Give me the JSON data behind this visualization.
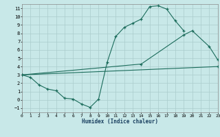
{
  "background_color": "#c8e8e8",
  "grid_color": "#aacccc",
  "line_color": "#1a6b5a",
  "xlim": [
    0,
    23
  ],
  "ylim": [
    -1.5,
    11.5
  ],
  "xticks": [
    0,
    1,
    2,
    3,
    4,
    5,
    6,
    7,
    8,
    9,
    10,
    11,
    12,
    13,
    14,
    15,
    16,
    17,
    18,
    19,
    20,
    21,
    22,
    23
  ],
  "yticks": [
    -1,
    0,
    1,
    2,
    3,
    4,
    5,
    6,
    7,
    8,
    9,
    10,
    11
  ],
  "xlabel": "Humidex (Indice chaleur)",
  "curve1_x": [
    0,
    1,
    2,
    3,
    4,
    5,
    6,
    7,
    8,
    9,
    10,
    11,
    12,
    13,
    14,
    15,
    16,
    17,
    18,
    19
  ],
  "curve1_y": [
    3.0,
    2.7,
    1.8,
    1.3,
    1.1,
    0.2,
    0.1,
    -0.5,
    -0.9,
    0.1,
    4.5,
    7.6,
    8.7,
    9.2,
    9.7,
    11.2,
    11.3,
    10.9,
    9.5,
    8.3
  ],
  "curve2_x": [
    0,
    14,
    19,
    20,
    22,
    23
  ],
  "curve2_y": [
    3.0,
    4.3,
    7.8,
    8.3,
    6.4,
    4.8
  ],
  "curve3_x": [
    0,
    23
  ],
  "curve3_y": [
    3.0,
    4.0
  ]
}
